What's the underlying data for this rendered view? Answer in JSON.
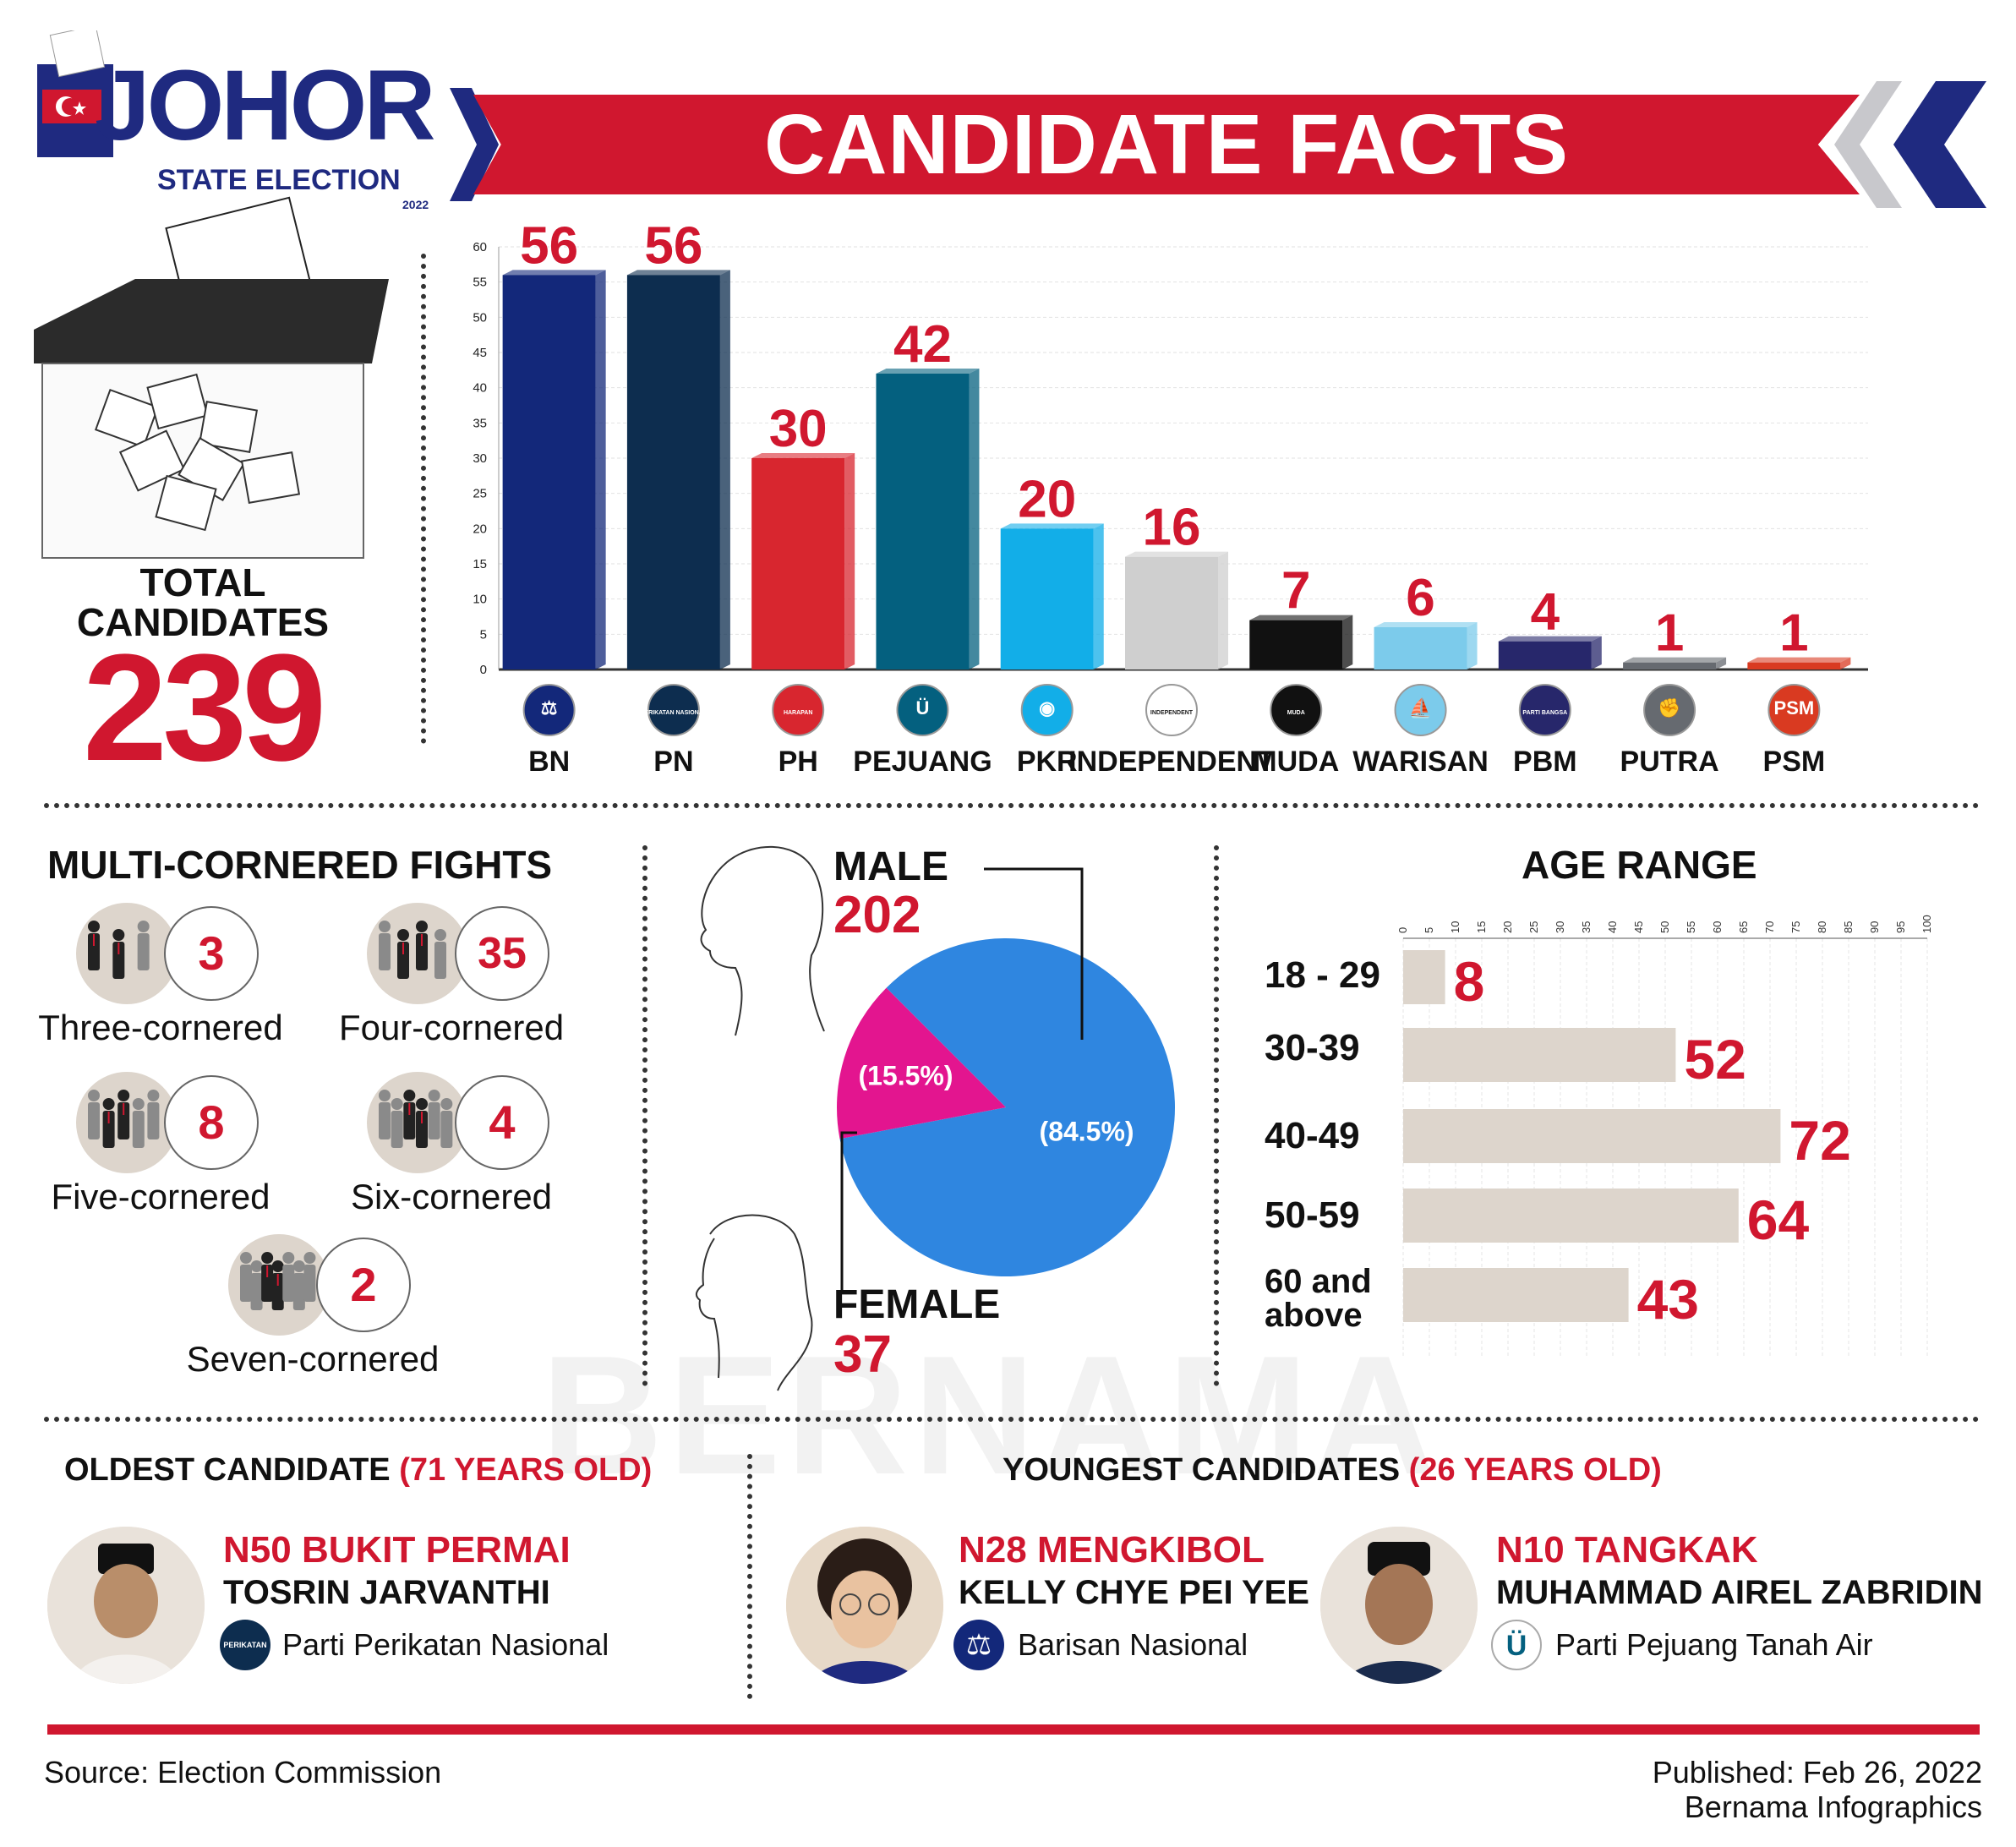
{
  "header": {
    "logo_word": "JOHOR",
    "logo_sub": "STATE ELECTION",
    "logo_year": "2022",
    "title": "CANDIDATE FACTS"
  },
  "colors": {
    "red": "#d0172f",
    "navy": "#1f2a80",
    "pie_male": "#2f86e0",
    "pie_female": "#e3158f",
    "age_bar": "#ddd5cc"
  },
  "total": {
    "label_line1": "TOTAL",
    "label_line2": "CANDIDATES",
    "value": "239"
  },
  "party_chart": {
    "axis_ticks": [
      "0",
      "5",
      "10",
      "15",
      "20",
      "25",
      "30",
      "35",
      "40",
      "45",
      "50",
      "55",
      "60"
    ]
  },
  "chart_data": [
    {
      "type": "bar",
      "categories": [
        "BN",
        "PN",
        "PH",
        "PEJUANG",
        "PKR",
        "INDEPENDENT",
        "MUDA",
        "WARISAN",
        "PBM",
        "PUTRA",
        "PSM"
      ],
      "values": [
        56,
        56,
        30,
        42,
        20,
        16,
        7,
        6,
        4,
        1,
        1
      ],
      "colors": [
        "#13287a",
        "#0d2d4f",
        "#d8262f",
        "#04607f",
        "#12aee8",
        "#cfcfcf",
        "#111111",
        "#7ccbeb",
        "#27276b",
        "#666a70",
        "#d93a21"
      ],
      "logo_text": [
        "⚖",
        "PERIKATAN NASIONAL",
        "HARAPAN",
        "Ü",
        "◉",
        "INDEPENDENT",
        "MUDA",
        "⛵",
        "PARTI BANGSA",
        "✊",
        "PSM"
      ],
      "ylim": [
        0,
        60
      ]
    },
    {
      "type": "pie",
      "title": "",
      "labels": [
        "MALE",
        "FEMALE"
      ],
      "values": [
        202,
        37
      ],
      "percent_labels": [
        "(84.5%)",
        "(15.5%)"
      ]
    },
    {
      "type": "bar",
      "title": "AGE RANGE",
      "orientation": "horizontal",
      "categories": [
        "18 - 29",
        "30-39",
        "40-49",
        "50-59",
        "60 and above"
      ],
      "values": [
        8,
        52,
        72,
        64,
        43
      ],
      "xlim": [
        0,
        100
      ],
      "x_ticks": [
        "0",
        "5",
        "10",
        "15",
        "20",
        "25",
        "30",
        "35",
        "40",
        "45",
        "50",
        "55",
        "60",
        "65",
        "70",
        "75",
        "80",
        "85",
        "90",
        "95",
        "100"
      ]
    }
  ],
  "fights": {
    "title": "MULTI-CORNERED FIGHTS",
    "items": [
      {
        "value": "3",
        "label": "Three-cornered"
      },
      {
        "value": "35",
        "label": "Four-cornered"
      },
      {
        "value": "8",
        "label": "Five-cornered"
      },
      {
        "value": "4",
        "label": "Six-cornered"
      },
      {
        "value": "2",
        "label": "Seven-cornered"
      }
    ]
  },
  "gender": {
    "male_label": "MALE",
    "male_value": "202",
    "female_label": "FEMALE",
    "female_value": "37",
    "male_pct": "(84.5%)",
    "female_pct": "(15.5%)"
  },
  "age": {
    "title": "AGE RANGE",
    "label_0": "18 - 29",
    "label_1": "30-39",
    "label_2": "40-49",
    "label_3": "50-59",
    "label_4a": "60 and",
    "label_4b": "above"
  },
  "oldest": {
    "title_main": "OLDEST CANDIDATE",
    "title_age": "(71  YEARS OLD)",
    "seat": "N50 BUKIT PERMAI",
    "name": "TOSRIN JARVANTHI",
    "party": "Parti Perikatan Nasional",
    "party_logo": "PERIKATAN NASIONAL"
  },
  "youngest": {
    "title_main": "YOUNGEST CANDIDATES",
    "title_age": "(26 YEARS OLD)",
    "c1": {
      "seat": "N28 MENGKIBOL",
      "name": "KELLY CHYE PEI YEE",
      "party": "Barisan Nasional"
    },
    "c2": {
      "seat": "N10 TANGKAK",
      "name": "MUHAMMAD AIREL ZABRIDIN",
      "party": "Parti Pejuang Tanah Air"
    }
  },
  "watermark": "BERNAMA",
  "footer": {
    "source": "Source: Election Commission",
    "published": "Published: Feb 26, 2022",
    "credit": "Bernama Infographics"
  }
}
